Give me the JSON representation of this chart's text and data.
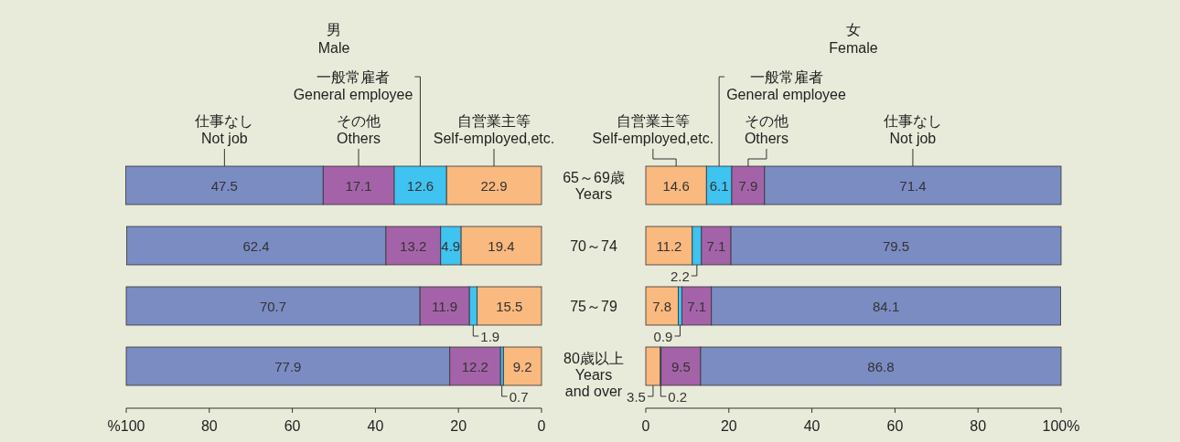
{
  "chart_data": [
    {
      "type": "bar",
      "orientation": "horizontal",
      "stacked": true,
      "title": "男",
      "subtitle": "Male",
      "categories": [
        "65～69歳\nYears",
        "70～74",
        "75～79",
        "80歳以上\nYears\nand over"
      ],
      "tick_labels": "x",
      "xlim": [
        100,
        0
      ],
      "xticks": [
        {
          "value": 100,
          "label": "%100"
        },
        80,
        60,
        40,
        20,
        0
      ],
      "data_labels": true,
      "legend": "top",
      "series": [
        {
          "name": "自営業主等\nSelf-employed,etc.",
          "color": "#f9b97f",
          "values": [
            22.9,
            19.4,
            15.5,
            9.2
          ]
        },
        {
          "name": "一般常雇者\nGeneral employee",
          "color": "#3fc3f0",
          "values": [
            12.6,
            4.9,
            1.9,
            0.7
          ]
        },
        {
          "name": "その他\nOthers",
          "color": "#a463a8",
          "values": [
            17.1,
            13.2,
            11.9,
            12.2
          ]
        },
        {
          "name": "仕事なし\nNot job",
          "color": "#7b8cc3",
          "values": [
            47.5,
            62.4,
            70.7,
            77.9
          ]
        }
      ]
    },
    {
      "type": "bar",
      "orientation": "horizontal",
      "stacked": true,
      "title": "女",
      "subtitle": "Female",
      "categories": [
        "65～69歳\nYears",
        "70～74",
        "75～79",
        "80歳以上\nYears\nand over"
      ],
      "xlim": [
        0,
        100
      ],
      "xticks": [
        0,
        20,
        40,
        60,
        80,
        {
          "value": 100,
          "label": "100%"
        }
      ],
      "data_labels": true,
      "legend": "top",
      "series": [
        {
          "name": "自営業主等\nSelf-employed,etc.",
          "color": "#f9b97f",
          "values": [
            14.6,
            11.2,
            7.8,
            3.5
          ]
        },
        {
          "name": "一般常雇者\nGeneral employee",
          "color": "#3fc3f0",
          "values": [
            6.1,
            2.2,
            0.9,
            0.2
          ]
        },
        {
          "name": "その他\nOthers",
          "color": "#a463a8",
          "values": [
            7.9,
            7.1,
            7.1,
            9.5
          ]
        },
        {
          "name": "仕事なし\nNot job",
          "color": "#7b8cc3",
          "values": [
            71.4,
            79.5,
            84.1,
            86.8
          ]
        }
      ]
    }
  ]
}
